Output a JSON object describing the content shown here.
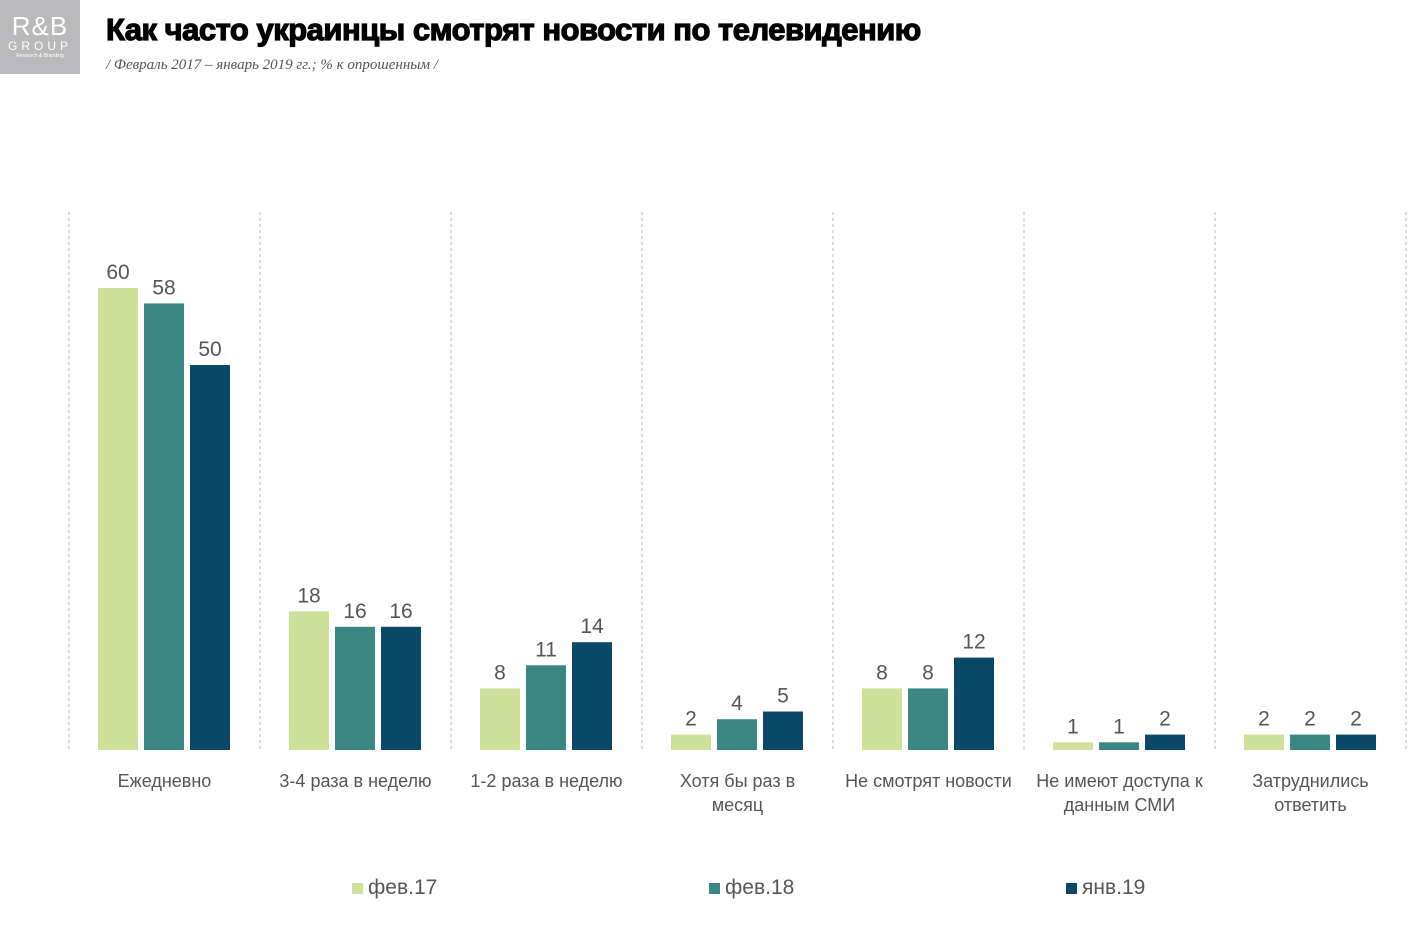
{
  "logo": {
    "line1": "R&B",
    "line2": "GROUP",
    "line3": "Research & Branding"
  },
  "title": "Как часто украинцы смотрят новости по телевидению",
  "subtitle": "/ Февраль 2017 – январь 2019 гг.; % к опрошенным  /",
  "chart_data": {
    "type": "bar",
    "categories": [
      "Ежедневно",
      "3-4 раза в неделю",
      "1-2 раза в неделю",
      "Хотя бы раз в месяц",
      "Не смотрят новости",
      "Не имеют доступа к данным СМИ",
      "Затруднились ответить"
    ],
    "category_lines": [
      [
        "Ежедневно"
      ],
      [
        "3-4 раза в неделю"
      ],
      [
        "1-2 раза в неделю"
      ],
      [
        "Хотя бы раз в",
        "месяц"
      ],
      [
        "Не смотрят новости"
      ],
      [
        "Не имеют доступа к",
        "данным СМИ"
      ],
      [
        "Затруднились",
        "ответить"
      ]
    ],
    "series": [
      {
        "name": "фев.17",
        "color": "#cfe09b",
        "values": [
          60,
          18,
          8,
          2,
          8,
          1,
          2
        ]
      },
      {
        "name": "фев.18",
        "color": "#3b8783",
        "values": [
          58,
          16,
          11,
          4,
          8,
          1,
          2
        ]
      },
      {
        "name": "янв.19",
        "color": "#0b4767",
        "values": [
          50,
          16,
          14,
          5,
          12,
          2,
          2
        ]
      }
    ],
    "ylim": [
      0,
      60
    ],
    "grid": "vertical dashed separators",
    "legend": "bottom",
    "data_labels": true
  }
}
